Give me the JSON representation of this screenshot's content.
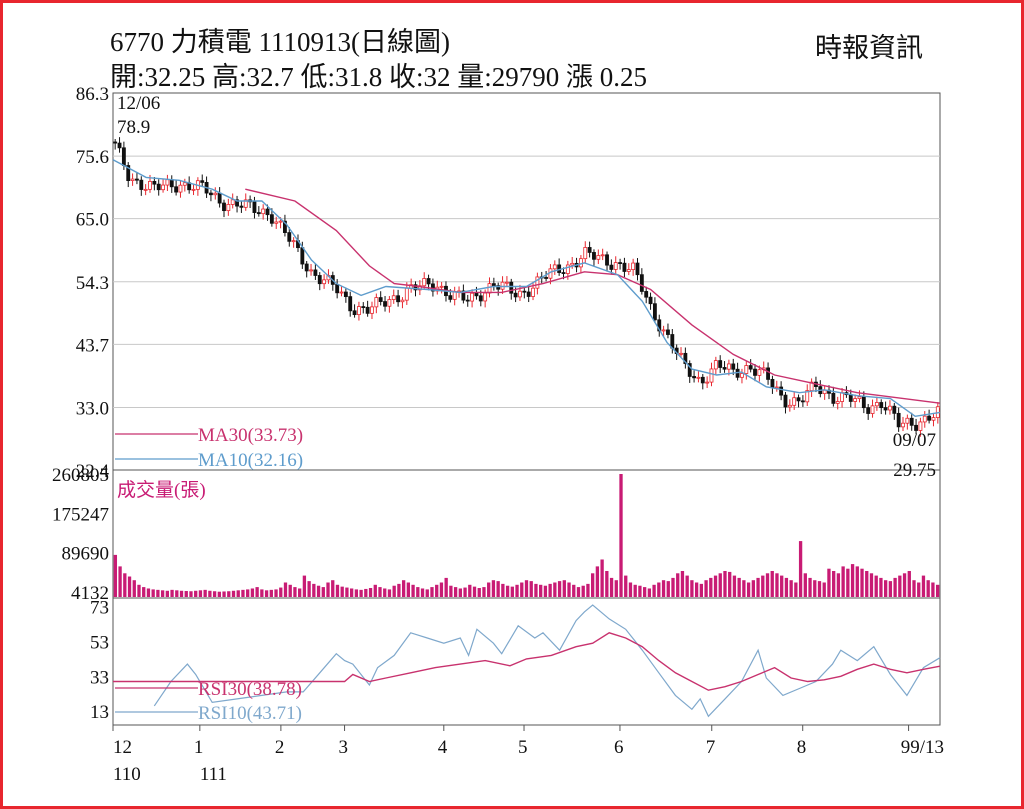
{
  "header": {
    "title": "6770 力積電 1110913(日線圖)",
    "source": "時報資訊",
    "quote": "開:32.25 高:32.7 低:31.8 收:32 量:29790 漲 0.25"
  },
  "colors": {
    "up": "#e8262e",
    "down": "#111111",
    "ma30": "#c8326e",
    "ma10": "#5e9ccc",
    "rsi30": "#c8326e",
    "rsi10": "#7fa8cc",
    "volume": "#c81b74",
    "grid": "#c8c8c8",
    "border": "#e8262e"
  },
  "chart_data": [
    {
      "type": "candlestick",
      "ylim": [
        22.4,
        86.3
      ],
      "ticks": [
        "86.3",
        "75.6",
        "65.0",
        "54.3",
        "43.7",
        "33.0",
        "22.4"
      ],
      "annotations": {
        "high_date": "12/06",
        "high_value": "78.9",
        "low_date": "09/07",
        "low_value": "29.75"
      },
      "legend": [
        {
          "key": "ma30",
          "label": "MA30(33.73)"
        },
        {
          "key": "ma10",
          "label": "MA10(32.16)"
        }
      ],
      "ma30": [
        [
          0.16,
          70.0
        ],
        [
          0.22,
          68.0
        ],
        [
          0.27,
          63.0
        ],
        [
          0.31,
          57.0
        ],
        [
          0.34,
          54.0
        ],
        [
          0.37,
          53.5
        ],
        [
          0.42,
          52.5
        ],
        [
          0.47,
          52.5
        ],
        [
          0.52,
          54.0
        ],
        [
          0.57,
          56.0
        ],
        [
          0.61,
          55.5
        ],
        [
          0.65,
          53.0
        ],
        [
          0.7,
          47.0
        ],
        [
          0.75,
          42.0
        ],
        [
          0.8,
          38.5
        ],
        [
          0.85,
          37.0
        ],
        [
          0.9,
          35.5
        ],
        [
          1.0,
          33.73
        ]
      ],
      "ma10": [
        [
          0.0,
          75.0
        ],
        [
          0.04,
          72.0
        ],
        [
          0.08,
          71.5
        ],
        [
          0.12,
          70.0
        ],
        [
          0.15,
          68.0
        ],
        [
          0.18,
          68.0
        ],
        [
          0.21,
          64.0
        ],
        [
          0.24,
          58.0
        ],
        [
          0.27,
          54.0
        ],
        [
          0.3,
          52.0
        ],
        [
          0.33,
          53.5
        ],
        [
          0.38,
          53.0
        ],
        [
          0.42,
          52.5
        ],
        [
          0.46,
          53.5
        ],
        [
          0.5,
          53.5
        ],
        [
          0.53,
          56.0
        ],
        [
          0.57,
          57.5
        ],
        [
          0.61,
          55.5
        ],
        [
          0.64,
          51.0
        ],
        [
          0.67,
          44.0
        ],
        [
          0.7,
          39.5
        ],
        [
          0.73,
          38.5
        ],
        [
          0.76,
          39.0
        ],
        [
          0.79,
          36.5
        ],
        [
          0.83,
          35.5
        ],
        [
          0.86,
          36.0
        ],
        [
          0.9,
          35.0
        ],
        [
          0.94,
          34.5
        ],
        [
          0.97,
          31.5
        ],
        [
          1.0,
          32.16
        ]
      ],
      "close_path": [
        [
          0.0,
          78.0
        ],
        [
          0.02,
          72.0
        ],
        [
          0.05,
          70.0
        ],
        [
          0.08,
          71.0
        ],
        [
          0.11,
          70.0
        ],
        [
          0.13,
          68.0
        ],
        [
          0.16,
          67.0
        ],
        [
          0.19,
          66.0
        ],
        [
          0.21,
          62.0
        ],
        [
          0.24,
          56.0
        ],
        [
          0.27,
          53.0
        ],
        [
          0.29,
          50.0
        ],
        [
          0.31,
          49.5
        ],
        [
          0.33,
          51.0
        ],
        [
          0.36,
          53.0
        ],
        [
          0.39,
          54.0
        ],
        [
          0.41,
          52.0
        ],
        [
          0.43,
          51.0
        ],
        [
          0.46,
          54.0
        ],
        [
          0.49,
          52.0
        ],
        [
          0.52,
          55.0
        ],
        [
          0.55,
          57.0
        ],
        [
          0.57,
          59.0
        ],
        [
          0.59,
          58.0
        ],
        [
          0.61,
          57.5
        ],
        [
          0.63,
          56.0
        ],
        [
          0.65,
          50.0
        ],
        [
          0.67,
          45.0
        ],
        [
          0.69,
          40.0
        ],
        [
          0.71,
          37.5
        ],
        [
          0.73,
          40.0
        ],
        [
          0.75,
          39.0
        ],
        [
          0.77,
          40.0
        ],
        [
          0.79,
          38.0
        ],
        [
          0.81,
          34.5
        ],
        [
          0.83,
          34.0
        ],
        [
          0.85,
          36.5
        ],
        [
          0.87,
          35.0
        ],
        [
          0.89,
          34.5
        ],
        [
          0.91,
          33.0
        ],
        [
          0.93,
          34.0
        ],
        [
          0.95,
          30.0
        ],
        [
          0.97,
          30.5
        ],
        [
          1.0,
          32.0
        ]
      ]
    },
    {
      "type": "bar",
      "title": "成交量(張)",
      "ticks": [
        "260805",
        "175247",
        "89690",
        "4132"
      ],
      "ylim": [
        0,
        260805
      ],
      "values": [
        85000,
        60000,
        45000,
        38000,
        30000,
        20000,
        15000,
        12000,
        10000,
        9000,
        8000,
        7000,
        9000,
        8000,
        7000,
        6500,
        6000,
        7000,
        8000,
        9000,
        7000,
        6000,
        5000,
        5500,
        6000,
        7000,
        8000,
        9000,
        10000,
        12000,
        15000,
        10000,
        8000,
        9000,
        10000,
        14000,
        25000,
        20000,
        15000,
        12000,
        40000,
        28000,
        22000,
        18000,
        15000,
        25000,
        30000,
        20000,
        16000,
        14000,
        12000,
        10000,
        9000,
        11000,
        13000,
        20000,
        15000,
        12000,
        10000,
        18000,
        22000,
        30000,
        25000,
        20000,
        15000,
        12000,
        10000,
        15000,
        20000,
        25000,
        35000,
        18000,
        15000,
        12000,
        14000,
        20000,
        16000,
        13000,
        15000,
        25000,
        30000,
        28000,
        22000,
        18000,
        16000,
        20000,
        25000,
        30000,
        28000,
        22000,
        20000,
        18000,
        22000,
        25000,
        28000,
        30000,
        25000,
        20000,
        15000,
        18000,
        22000,
        45000,
        60000,
        75000,
        50000,
        35000,
        30000,
        260805,
        40000,
        25000,
        20000,
        18000,
        15000,
        12000,
        20000,
        25000,
        30000,
        28000,
        35000,
        45000,
        50000,
        40000,
        30000,
        25000,
        22000,
        30000,
        35000,
        40000,
        45000,
        50000,
        48000,
        40000,
        35000,
        30000,
        25000,
        30000,
        35000,
        40000,
        45000,
        50000,
        45000,
        40000,
        35000,
        30000,
        25000,
        115000,
        45000,
        35000,
        30000,
        28000,
        25000,
        55000,
        50000,
        45000,
        60000,
        55000,
        65000,
        60000,
        55000,
        50000,
        45000,
        40000,
        35000,
        30000,
        28000,
        35000,
        40000,
        45000,
        50000,
        30000,
        25000,
        40000,
        30000,
        25000,
        20000
      ],
      "highlight_index": 107
    },
    {
      "type": "line",
      "ticks": [
        "73",
        "53",
        "33",
        "13"
      ],
      "ylim": [
        5,
        78
      ],
      "legend": [
        {
          "key": "rsi30",
          "label": "RSI30(38.78)"
        },
        {
          "key": "rsi10",
          "label": "RSI10(43.71)"
        }
      ],
      "rsi30": [
        [
          0.0,
          30.0
        ],
        [
          0.1,
          30.0
        ],
        [
          0.28,
          30.0
        ],
        [
          0.29,
          34.0
        ],
        [
          0.31,
          30.0
        ],
        [
          0.33,
          32.0
        ],
        [
          0.36,
          35.0
        ],
        [
          0.39,
          38.0
        ],
        [
          0.42,
          40.0
        ],
        [
          0.45,
          42.0
        ],
        [
          0.48,
          39.0
        ],
        [
          0.5,
          43.0
        ],
        [
          0.53,
          45.0
        ],
        [
          0.56,
          50.0
        ],
        [
          0.58,
          52.0
        ],
        [
          0.6,
          58.0
        ],
        [
          0.62,
          55.0
        ],
        [
          0.64,
          50.0
        ],
        [
          0.66,
          42.0
        ],
        [
          0.68,
          35.0
        ],
        [
          0.7,
          30.0
        ],
        [
          0.72,
          25.0
        ],
        [
          0.74,
          27.0
        ],
        [
          0.76,
          30.0
        ],
        [
          0.78,
          34.0
        ],
        [
          0.8,
          38.0
        ],
        [
          0.82,
          32.0
        ],
        [
          0.84,
          30.0
        ],
        [
          0.86,
          31.0
        ],
        [
          0.88,
          33.0
        ],
        [
          0.9,
          37.0
        ],
        [
          0.92,
          40.0
        ],
        [
          0.94,
          37.0
        ],
        [
          0.96,
          35.0
        ],
        [
          0.98,
          37.0
        ],
        [
          1.0,
          38.78
        ]
      ],
      "rsi10": [
        [
          0.05,
          16.0
        ],
        [
          0.07,
          30.0
        ],
        [
          0.09,
          40.0
        ],
        [
          0.1,
          34.0
        ],
        [
          0.12,
          18.0
        ],
        [
          0.15,
          20.0
        ],
        [
          0.18,
          22.0
        ],
        [
          0.21,
          24.0
        ],
        [
          0.23,
          24.0
        ],
        [
          0.25,
          35.0
        ],
        [
          0.27,
          46.0
        ],
        [
          0.28,
          42.0
        ],
        [
          0.29,
          40.0
        ],
        [
          0.31,
          28.0
        ],
        [
          0.32,
          38.0
        ],
        [
          0.34,
          45.0
        ],
        [
          0.36,
          58.0
        ],
        [
          0.38,
          55.0
        ],
        [
          0.4,
          52.0
        ],
        [
          0.42,
          55.0
        ],
        [
          0.43,
          45.0
        ],
        [
          0.44,
          60.0
        ],
        [
          0.46,
          52.0
        ],
        [
          0.47,
          46.0
        ],
        [
          0.49,
          62.0
        ],
        [
          0.51,
          55.0
        ],
        [
          0.52,
          58.0
        ],
        [
          0.54,
          48.0
        ],
        [
          0.56,
          65.0
        ],
        [
          0.57,
          70.0
        ],
        [
          0.58,
          74.0
        ],
        [
          0.6,
          66.0
        ],
        [
          0.62,
          60.0
        ],
        [
          0.64,
          48.0
        ],
        [
          0.66,
          35.0
        ],
        [
          0.68,
          22.0
        ],
        [
          0.7,
          14.0
        ],
        [
          0.71,
          20.0
        ],
        [
          0.72,
          10.0
        ],
        [
          0.74,
          20.0
        ],
        [
          0.76,
          30.0
        ],
        [
          0.78,
          48.0
        ],
        [
          0.79,
          32.0
        ],
        [
          0.81,
          22.0
        ],
        [
          0.83,
          26.0
        ],
        [
          0.85,
          30.0
        ],
        [
          0.87,
          40.0
        ],
        [
          0.88,
          48.0
        ],
        [
          0.9,
          42.0
        ],
        [
          0.92,
          50.0
        ],
        [
          0.94,
          34.0
        ],
        [
          0.96,
          22.0
        ],
        [
          0.98,
          38.0
        ],
        [
          1.0,
          43.71
        ]
      ]
    }
  ],
  "x_axis": {
    "ticks": [
      {
        "label": "12",
        "sub": "110",
        "pos": 0.0
      },
      {
        "label": "1",
        "sub": "111",
        "pos": 0.105
      },
      {
        "label": "2",
        "sub": "",
        "pos": 0.203
      },
      {
        "label": "3",
        "sub": "",
        "pos": 0.28
      },
      {
        "label": "4",
        "sub": "",
        "pos": 0.4
      },
      {
        "label": "5",
        "sub": "",
        "pos": 0.497
      },
      {
        "label": "6",
        "sub": "",
        "pos": 0.613
      },
      {
        "label": "7",
        "sub": "",
        "pos": 0.724
      },
      {
        "label": "8",
        "sub": "",
        "pos": 0.834
      },
      {
        "label": "9",
        "sub": "",
        "pos": 0.962
      }
    ],
    "end_label": "9/13"
  }
}
